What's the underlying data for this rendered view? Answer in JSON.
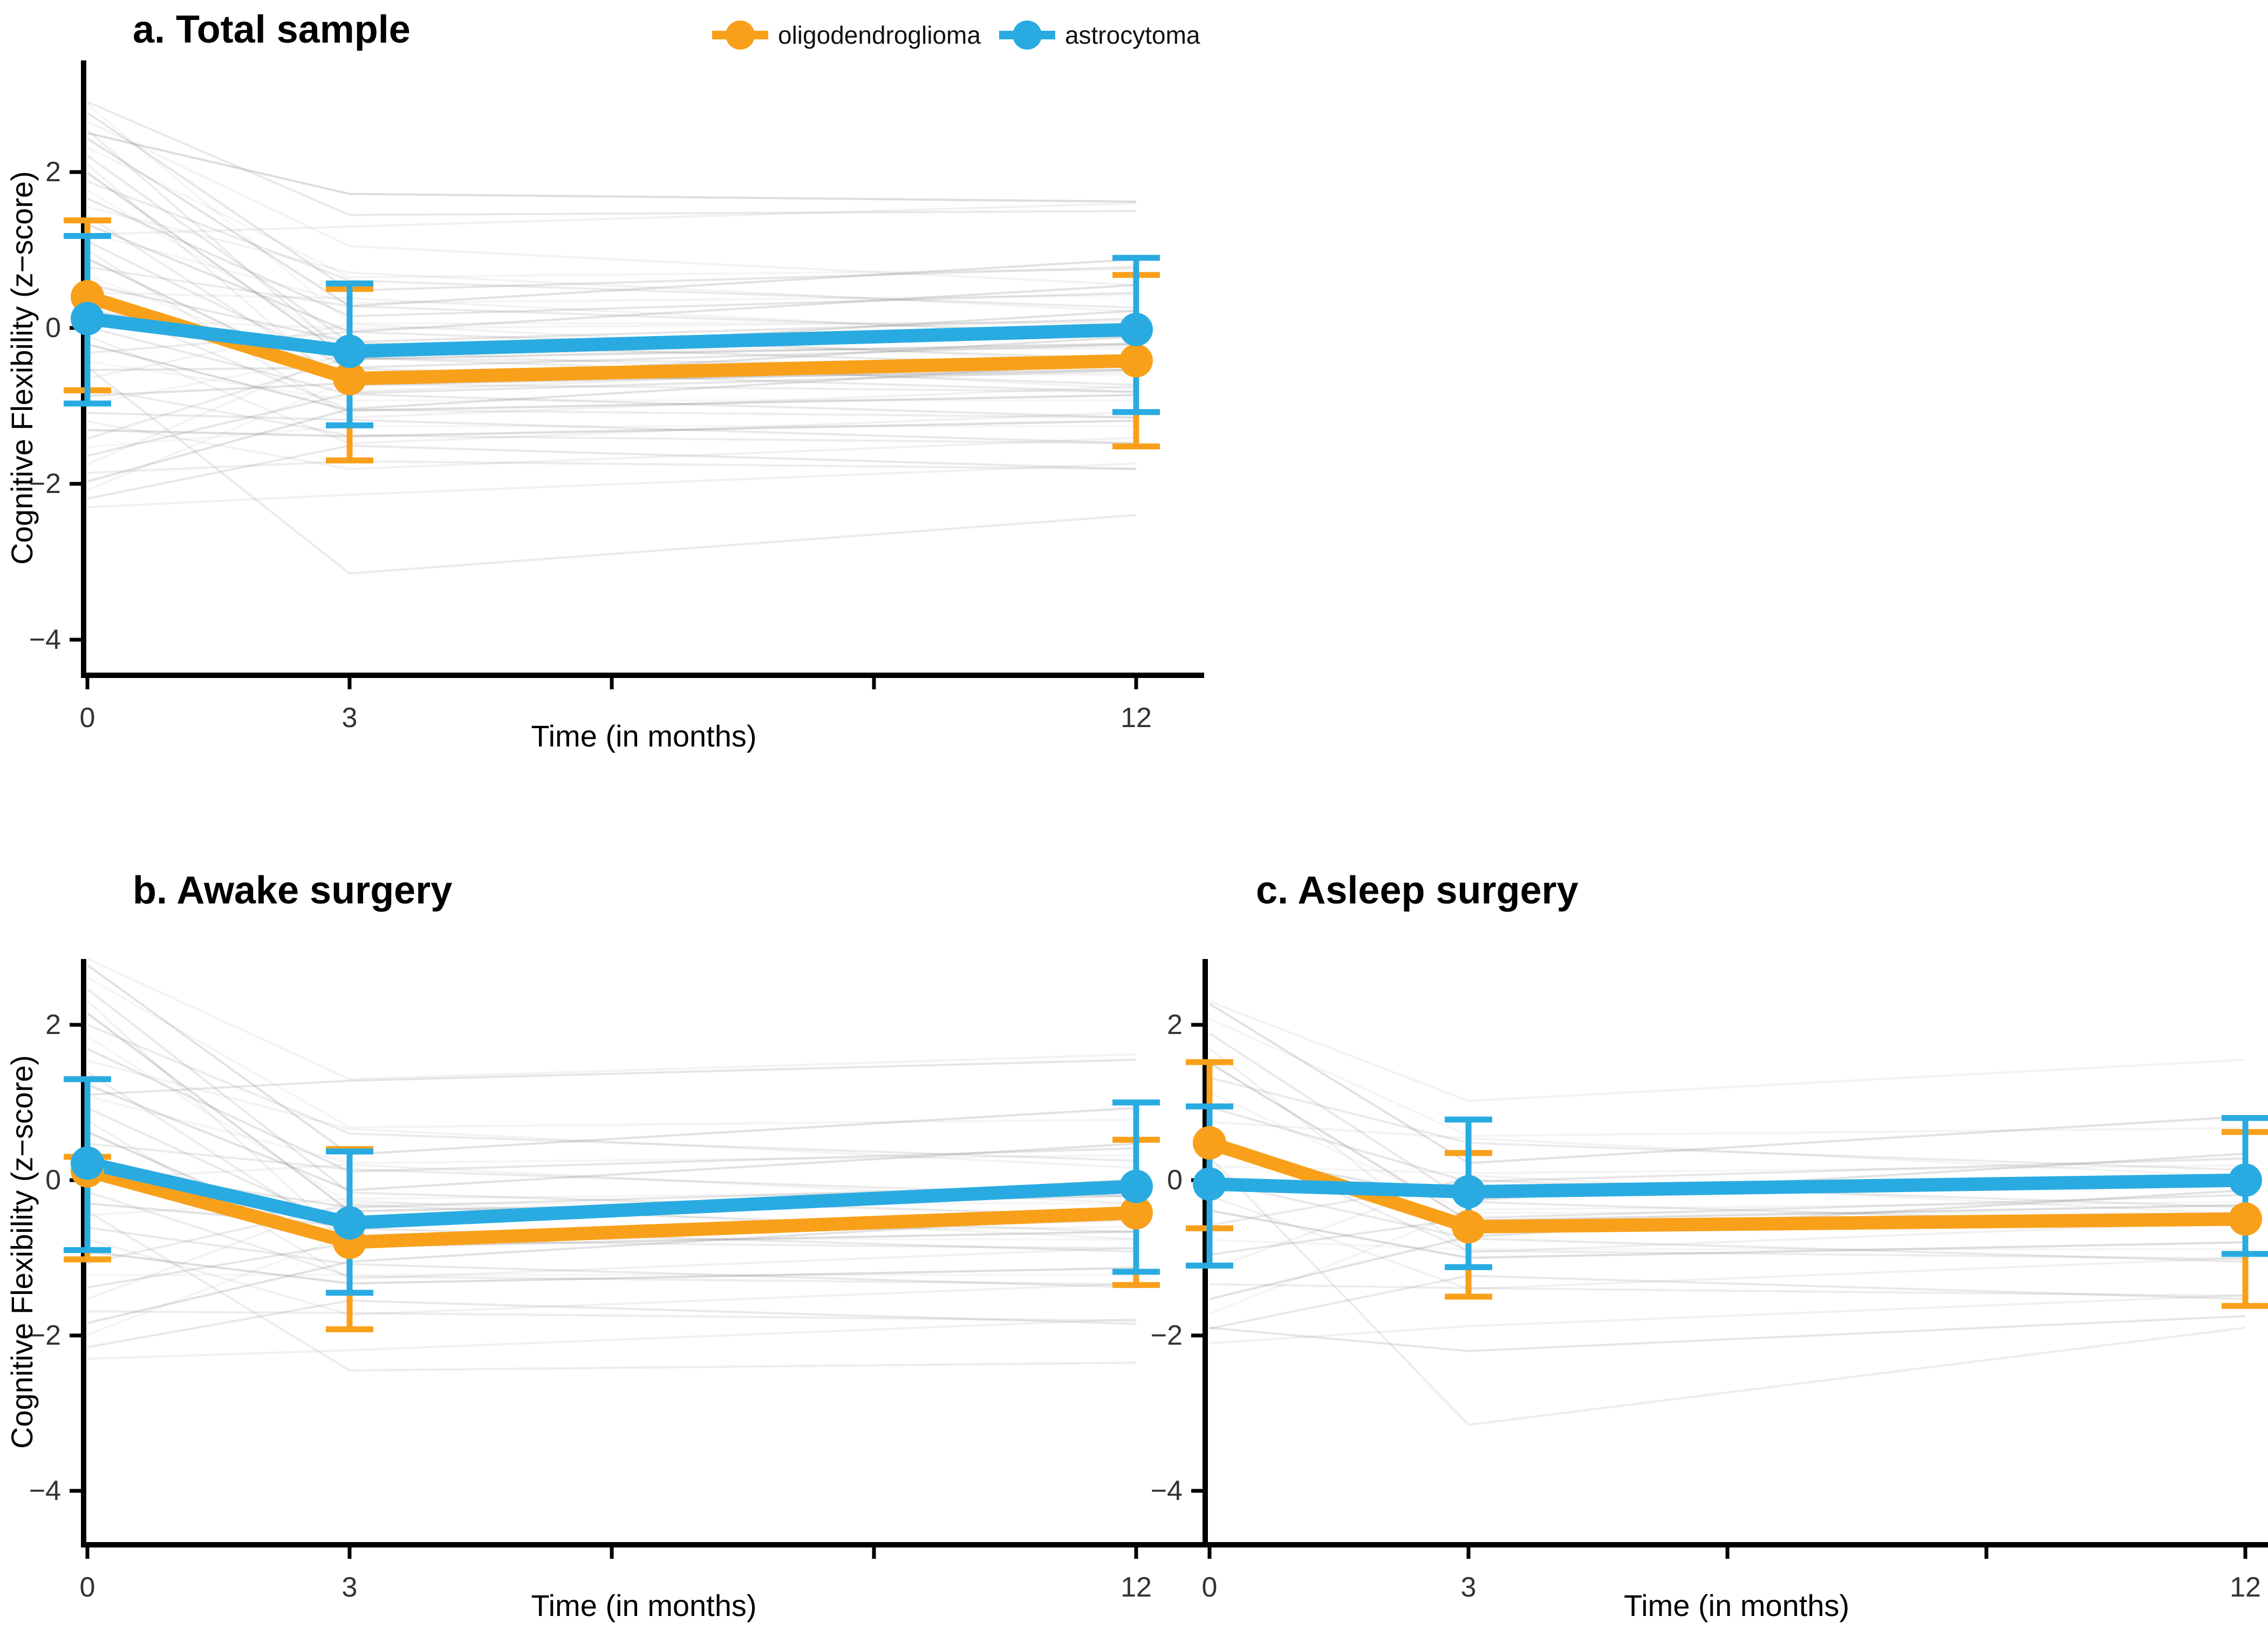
{
  "figure": {
    "background": "#ffffff",
    "colors": {
      "axis": "#000000",
      "tick_label": "#333333",
      "individual_line": "#8f8f8f"
    },
    "legend": {
      "items": [
        {
          "label": "oligodendroglioma",
          "color": "#F9A01B"
        },
        {
          "label": "astrocytoma",
          "color": "#29ABE2"
        }
      ]
    }
  },
  "chart_data": {
    "type": "line",
    "x": [
      0,
      3,
      12
    ],
    "x_ticks": [
      0,
      3,
      6,
      9,
      12
    ],
    "x_tick_labels": [
      "0",
      "3",
      "",
      "",
      "12"
    ],
    "y_ticks": [
      2,
      0,
      -2,
      -4
    ],
    "y_tick_labels": [
      "2",
      "0",
      "−2",
      "−4"
    ],
    "xlabel": "Time (in months)",
    "ylabel": "Cognitive Flexibility (z−score)",
    "ylim": [
      -4.7,
      3.4
    ],
    "grid": "off",
    "legend_position": "top",
    "series_colors": {
      "oligodendroglioma": "#F9A01B",
      "astrocytoma": "#29ABE2"
    },
    "panels": [
      {
        "id": "a",
        "title": "a. Total sample",
        "series": [
          {
            "name": "oligodendroglioma",
            "mean": [
              0.4,
              -0.65,
              -0.42
            ],
            "ci_low": [
              -0.8,
              -1.7,
              -1.52
            ],
            "ci_high": [
              1.38,
              0.5,
              0.68
            ]
          },
          {
            "name": "astrocytoma",
            "mean": [
              0.12,
              -0.3,
              -0.02
            ],
            "ci_low": [
              -0.97,
              -1.25,
              -1.08
            ],
            "ci_high": [
              1.18,
              0.57,
              0.9
            ]
          }
        ],
        "individuals": [
          [
            -2.3,
            -2.14,
            -1.74
          ],
          [
            -2.19,
            -1.51,
            -1.81
          ],
          [
            -2.08,
            -0.67,
            -0.57
          ],
          [
            -1.97,
            -1.04,
            -0.44
          ],
          [
            -1.86,
            -1.71,
            -1.81
          ],
          [
            -1.75,
            -0.28,
            -0.78
          ],
          [
            -1.64,
            -0.84,
            -0.54
          ],
          [
            -1.53,
            -1.26,
            -1.26
          ],
          [
            -1.42,
            -0.38,
            -0.73
          ],
          [
            -1.31,
            -1.39,
            -1.19
          ],
          [
            -1.2,
            -1.81,
            -1.41
          ],
          [
            -1.09,
            -1.18,
            -1.48
          ],
          [
            -0.98,
            -0.34,
            -0.24
          ],
          [
            -0.87,
            -0.71,
            -0.11
          ],
          [
            -0.76,
            -1.38,
            -1.48
          ],
          [
            -0.65,
            0.05,
            -0.45
          ],
          [
            -0.54,
            -0.51,
            -0.21
          ],
          [
            -0.43,
            -0.93,
            -0.93
          ],
          [
            -0.32,
            -0.05,
            -0.4
          ],
          [
            -0.21,
            -1.06,
            -0.86
          ],
          [
            -0.1,
            -1.48,
            -1.08
          ],
          [
            0.01,
            -0.85,
            -1.15
          ],
          [
            0.12,
            -0.01,
            0.09
          ],
          [
            0.23,
            -0.38,
            0.22
          ],
          [
            0.34,
            -1.05,
            -1.15
          ],
          [
            0.45,
            0.38,
            -0.12
          ],
          [
            0.56,
            -0.18,
            0.12
          ],
          [
            0.67,
            -0.6,
            -0.6
          ],
          [
            0.78,
            0.28,
            -0.07
          ],
          [
            0.89,
            -0.73,
            -0.53
          ],
          [
            1,
            -1.15,
            -0.75
          ],
          [
            1.11,
            -0.52,
            -0.82
          ],
          [
            1.22,
            0.32,
            0.42
          ],
          [
            1.33,
            -0.05,
            0.55
          ],
          [
            1.44,
            -0.72,
            -0.82
          ],
          [
            1.55,
            0.71,
            0.21
          ],
          [
            1.66,
            0.15,
            0.45
          ],
          [
            1.77,
            -0.27,
            -0.27
          ],
          [
            1.88,
            0.61,
            0.26
          ],
          [
            1.99,
            -0.4,
            -0.2
          ],
          [
            2.1,
            -0.82,
            -0.42
          ],
          [
            2.21,
            -0.19,
            -0.49
          ],
          [
            2.32,
            0.65,
            0.75
          ],
          [
            2.43,
            0.28,
            0.88
          ],
          [
            2.54,
            -0.39,
            -0.49
          ],
          [
            2.65,
            1.05,
            0.55
          ],
          [
            2.76,
            0.48,
            0.78
          ],
          [
            2.87,
            0.06,
            0.06
          ],
          [
            -0.5,
            -3.15,
            -2.4
          ],
          [
            2.5,
            1.72,
            1.62
          ],
          [
            1.2,
            1.3,
            1.6
          ],
          [
            2.9,
            1.45,
            1.5
          ]
        ]
      },
      {
        "id": "b",
        "title": "b. Awake surgery",
        "series": [
          {
            "name": "oligodendroglioma",
            "mean": [
              0.12,
              -0.8,
              -0.42
            ],
            "ci_low": [
              -1.02,
              -1.92,
              -1.35
            ],
            "ci_high": [
              0.3,
              0.4,
              0.52
            ]
          },
          {
            "name": "astrocytoma",
            "mean": [
              0.22,
              -0.55,
              -0.08
            ],
            "ci_low": [
              -0.9,
              -1.45,
              -1.18
            ],
            "ci_high": [
              1.3,
              0.37,
              1.0
            ]
          }
        ],
        "individuals": [
          [
            -2.3,
            -2.19,
            -1.79
          ],
          [
            -2.15,
            -1.55,
            -1.85
          ],
          [
            -1.99,
            -0.7,
            -0.6
          ],
          [
            -1.84,
            -1.05,
            -0.45
          ],
          [
            -1.69,
            -1.71,
            -1.81
          ],
          [
            -1.53,
            -0.26,
            -0.76
          ],
          [
            -1.38,
            -0.81,
            -0.51
          ],
          [
            -1.22,
            -1.22,
            -1.22
          ],
          [
            -1.07,
            -0.32,
            -0.67
          ],
          [
            -0.92,
            -1.33,
            -1.13
          ],
          [
            -0.76,
            -1.73,
            -1.33
          ],
          [
            -0.61,
            -1.08,
            -1.38
          ],
          [
            -0.45,
            -0.24,
            -0.14
          ],
          [
            -0.3,
            -0.59,
            0.01
          ],
          [
            -0.15,
            -1.24,
            -1.34
          ],
          [
            0.01,
            0.2,
            -0.3
          ],
          [
            0.16,
            -0.35,
            -0.05
          ],
          [
            0.31,
            -0.76,
            -0.76
          ],
          [
            0.47,
            0.14,
            -0.21
          ],
          [
            0.62,
            -0.86,
            -0.66
          ],
          [
            0.77,
            -1.27,
            -0.87
          ],
          [
            0.93,
            -0.62,
            -0.92
          ],
          [
            1.08,
            0.22,
            0.32
          ],
          [
            1.23,
            -0.13,
            0.47
          ],
          [
            1.39,
            -0.78,
            -0.88
          ],
          [
            1.54,
            0.66,
            0.16
          ],
          [
            1.69,
            0.11,
            0.41
          ],
          [
            1.85,
            -0.3,
            -0.3
          ],
          [
            2,
            0.6,
            0.25
          ],
          [
            2.15,
            -0.4,
            -0.2
          ],
          [
            2.31,
            -0.81,
            -0.41
          ],
          [
            2.46,
            -0.16,
            -0.46
          ],
          [
            2.61,
            0.68,
            0.78
          ],
          [
            2.77,
            0.33,
            0.93
          ],
          [
            -0.4,
            -2.45,
            -2.35
          ],
          [
            2.85,
            1.3,
            1.62
          ],
          [
            1.1,
            1.28,
            1.55
          ]
        ]
      },
      {
        "id": "c",
        "title": "c. Asleep surgery",
        "series": [
          {
            "name": "oligodendroglioma",
            "mean": [
              0.48,
              -0.6,
              -0.5
            ],
            "ci_low": [
              -0.62,
              -1.5,
              -1.62
            ],
            "ci_high": [
              1.52,
              0.35,
              0.62
            ]
          },
          {
            "name": "astrocytoma",
            "mean": [
              -0.05,
              -0.15,
              0.0
            ],
            "ci_low": [
              -1.1,
              -1.12,
              -0.95
            ],
            "ci_high": [
              0.95,
              0.78,
              0.8
            ]
          }
        ],
        "individuals": [
          [
            -2.1,
            -1.88,
            -1.48
          ],
          [
            -1.91,
            -1.23,
            -1.53
          ],
          [
            -1.72,
            -0.38,
            -0.28
          ],
          [
            -1.53,
            -0.73,
            -0.13
          ],
          [
            -1.34,
            -1.39,
            -1.49
          ],
          [
            -1.15,
            0.06,
            -0.44
          ],
          [
            -0.96,
            -0.49,
            -0.19
          ],
          [
            -0.77,
            -0.89,
            -0.89
          ],
          [
            -0.58,
            0,
            -0.35
          ],
          [
            -0.39,
            -1,
            -0.8
          ],
          [
            -0.2,
            -1.4,
            -1
          ],
          [
            -0.01,
            -0.75,
            -1.05
          ],
          [
            0.18,
            0.09,
            0.19
          ],
          [
            0.37,
            -0.26,
            0.34
          ],
          [
            0.56,
            -0.91,
            -1.01
          ],
          [
            0.75,
            0.54,
            0.04
          ],
          [
            0.94,
            -0.02,
            0.28
          ],
          [
            1.13,
            -0.42,
            -0.42
          ],
          [
            1.32,
            0.48,
            0.13
          ],
          [
            1.51,
            -0.52,
            -0.32
          ],
          [
            1.7,
            -0.93,
            -0.53
          ],
          [
            1.89,
            -0.28,
            -0.58
          ],
          [
            2.08,
            0.57,
            0.67
          ],
          [
            2.27,
            0.22,
            0.82
          ],
          [
            0.3,
            -3.15,
            -1.9
          ],
          [
            2.3,
            1.02,
            1.55
          ],
          [
            -1.9,
            -2.2,
            -1.75
          ]
        ]
      }
    ]
  }
}
